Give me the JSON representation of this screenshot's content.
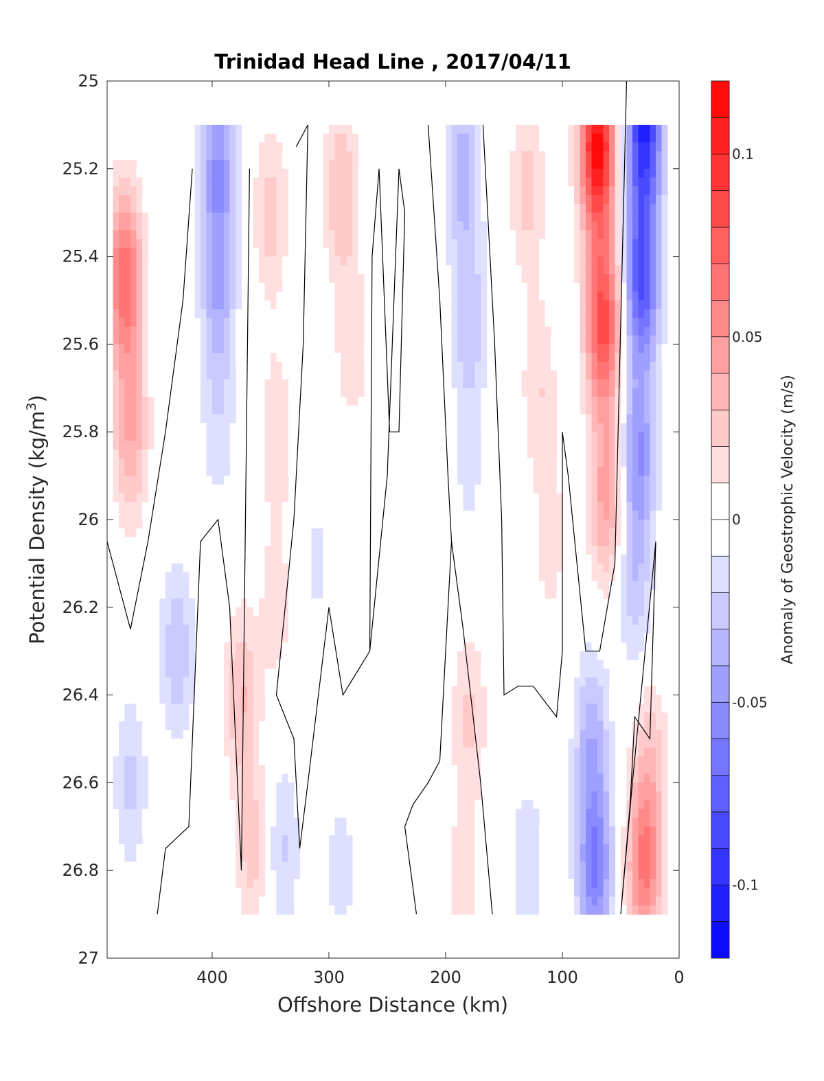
{
  "chart_data": {
    "type": "heatmap",
    "title": "Trinidad Head Line , 2017/04/11",
    "xlabel": "Offshore Distance (km)",
    "ylabel_main": "Potential Density (kg/m",
    "ylabel_sup": "3",
    "ylabel_close": ")",
    "colorbar_label": "Anomaly of Geostrophic Velocity (m/s)",
    "xlim": [
      490,
      0
    ],
    "ylim": [
      25,
      27
    ],
    "y_reversed": true,
    "x_ticks": [
      "400",
      "300",
      "200",
      "100",
      "0"
    ],
    "x_tick_values": [
      400,
      300,
      200,
      100,
      0
    ],
    "y_ticks": [
      "25",
      "25.2",
      "25.4",
      "25.6",
      "25.8",
      "26",
      "26.2",
      "26.4",
      "26.6",
      "26.8",
      "27"
    ],
    "y_tick_values": [
      25,
      25.2,
      25.4,
      25.6,
      25.8,
      26,
      26.2,
      26.4,
      26.6,
      26.8,
      27
    ],
    "colorbar_ticks": [
      "0.1",
      "0.05",
      "0",
      "-0.05",
      "-0.1"
    ],
    "colorbar_tick_values": [
      0.1,
      0.05,
      0,
      -0.05,
      -0.1
    ],
    "colorbar_range": [
      -0.12,
      0.12
    ],
    "colorbar_levels": 24,
    "grid": false,
    "colors": {
      "positive": "#ff0000",
      "negative": "#0000ff",
      "zero": "#ffffff",
      "contour": "#000000"
    },
    "data_extent": {
      "x": [
        485,
        10
      ],
      "y": [
        25.1,
        26.9
      ]
    },
    "anomaly_cores": [
      {
        "x": 475,
        "y": 25.45,
        "value": 0.07
      },
      {
        "x": 470,
        "y": 25.8,
        "value": 0.04
      },
      {
        "x": 395,
        "y": 25.2,
        "value": -0.05
      },
      {
        "x": 395,
        "y": 25.5,
        "value": -0.035
      },
      {
        "x": 395,
        "y": 25.8,
        "value": -0.015
      },
      {
        "x": 350,
        "y": 25.3,
        "value": 0.025
      },
      {
        "x": 345,
        "y": 25.8,
        "value": 0.018
      },
      {
        "x": 345,
        "y": 26.2,
        "value": 0.015
      },
      {
        "x": 290,
        "y": 25.25,
        "value": 0.03
      },
      {
        "x": 280,
        "y": 25.6,
        "value": 0.018
      },
      {
        "x": 250,
        "y": 25.5,
        "value": -0.008
      },
      {
        "x": 185,
        "y": 25.2,
        "value": -0.035
      },
      {
        "x": 180,
        "y": 25.55,
        "value": -0.028
      },
      {
        "x": 180,
        "y": 25.9,
        "value": -0.012
      },
      {
        "x": 130,
        "y": 25.25,
        "value": 0.025
      },
      {
        "x": 120,
        "y": 25.7,
        "value": 0.02
      },
      {
        "x": 110,
        "y": 26.05,
        "value": 0.015
      },
      {
        "x": 70,
        "y": 25.15,
        "value": 0.115
      },
      {
        "x": 65,
        "y": 25.55,
        "value": 0.085
      },
      {
        "x": 62,
        "y": 25.95,
        "value": 0.045
      },
      {
        "x": 30,
        "y": 25.1,
        "value": -0.1
      },
      {
        "x": 32,
        "y": 25.45,
        "value": -0.08
      },
      {
        "x": 35,
        "y": 25.85,
        "value": -0.05
      },
      {
        "x": 38,
        "y": 26.15,
        "value": -0.025
      },
      {
        "x": 430,
        "y": 26.3,
        "value": -0.028
      },
      {
        "x": 470,
        "y": 26.6,
        "value": -0.022
      },
      {
        "x": 375,
        "y": 26.4,
        "value": 0.03
      },
      {
        "x": 365,
        "y": 26.75,
        "value": 0.025
      },
      {
        "x": 310,
        "y": 26.1,
        "value": -0.012
      },
      {
        "x": 340,
        "y": 26.75,
        "value": -0.022
      },
      {
        "x": 290,
        "y": 26.8,
        "value": -0.015
      },
      {
        "x": 240,
        "y": 26.1,
        "value": -0.01
      },
      {
        "x": 180,
        "y": 26.45,
        "value": 0.022
      },
      {
        "x": 185,
        "y": 26.85,
        "value": 0.018
      },
      {
        "x": 130,
        "y": 26.8,
        "value": -0.02
      },
      {
        "x": 75,
        "y": 26.5,
        "value": -0.035
      },
      {
        "x": 72,
        "y": 26.8,
        "value": -0.06
      },
      {
        "x": 30,
        "y": 26.8,
        "value": 0.06
      },
      {
        "x": 25,
        "y": 26.55,
        "value": 0.025
      }
    ],
    "zero_contours": [
      [
        [
          417,
          25.2
        ],
        [
          425,
          25.5
        ],
        [
          440,
          25.8
        ],
        [
          455,
          26.05
        ],
        [
          470,
          26.25
        ],
        [
          490,
          26.05
        ]
      ],
      [
        [
          447,
          26.9
        ],
        [
          440,
          26.75
        ],
        [
          420,
          26.7
        ],
        [
          410,
          26.05
        ],
        [
          395,
          26.0
        ],
        [
          385,
          26.2
        ],
        [
          375,
          26.8
        ],
        [
          368,
          25.2
        ]
      ],
      [
        [
          328,
          25.15
        ],
        [
          318,
          25.1
        ],
        [
          322,
          25.6
        ],
        [
          330,
          26.0
        ],
        [
          345,
          26.4
        ],
        [
          330,
          26.5
        ],
        [
          325,
          26.75
        ],
        [
          318,
          26.6
        ],
        [
          300,
          26.2
        ],
        [
          288,
          26.4
        ],
        [
          265,
          26.3
        ],
        [
          263,
          25.4
        ],
        [
          257,
          25.2
        ],
        [
          248,
          25.8
        ],
        [
          240,
          25.8
        ],
        [
          235,
          25.3
        ],
        [
          240,
          25.2
        ],
        [
          250,
          25.9
        ],
        [
          265,
          26.3
        ]
      ],
      [
        [
          225,
          26.9
        ],
        [
          235,
          26.7
        ],
        [
          228,
          26.65
        ],
        [
          215,
          26.6
        ],
        [
          205,
          26.55
        ],
        [
          195,
          26.05
        ],
        [
          185,
          26.25
        ],
        [
          170,
          26.6
        ],
        [
          160,
          26.9
        ]
      ],
      [
        [
          215,
          25.1
        ],
        [
          205,
          25.5
        ],
        [
          198,
          25.9
        ],
        [
          195,
          26.05
        ]
      ],
      [
        [
          168,
          25.1
        ],
        [
          158,
          25.6
        ],
        [
          152,
          26.0
        ],
        [
          150,
          26.4
        ],
        [
          138,
          26.38
        ],
        [
          125,
          26.38
        ],
        [
          105,
          26.45
        ],
        [
          100,
          26.3
        ],
        [
          100,
          25.8
        ],
        [
          95,
          25.9
        ],
        [
          80,
          26.3
        ],
        [
          68,
          26.3
        ],
        [
          55,
          26.1
        ],
        [
          45,
          25.0
        ]
      ],
      [
        [
          50,
          26.9
        ],
        [
          40,
          26.6
        ],
        [
          20,
          26.05
        ],
        [
          25,
          26.5
        ],
        [
          38,
          26.45
        ],
        [
          42,
          26.65
        ],
        [
          50,
          26.9
        ]
      ]
    ]
  }
}
